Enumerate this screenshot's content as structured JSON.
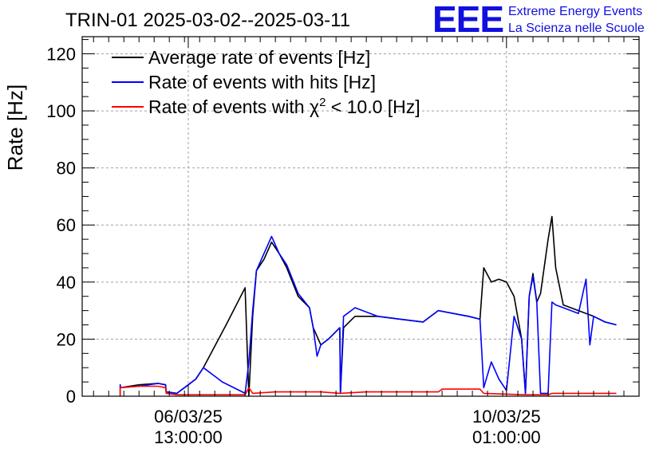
{
  "chart_data": {
    "type": "line",
    "title": "TRIN-01 2025-03-02--2025-03-11",
    "ylabel": "Rate [Hz]",
    "xlabel": "",
    "ylim": [
      0,
      126
    ],
    "yticks": [
      0,
      20,
      40,
      60,
      80,
      100,
      120
    ],
    "xlim": [
      "2025-03-05 09:00",
      "2025-03-11 12:00"
    ],
    "xticks": [
      {
        "time": "2025-03-06 13:00",
        "label_date": "06/03/25",
        "label_time": "13:00:00"
      },
      {
        "time": "2025-03-10 01:00",
        "label_date": "10/03/25",
        "label_time": "01:00:00"
      }
    ],
    "grid": true,
    "legend_position": "top-left",
    "legend": [
      {
        "label": "Average rate of events [Hz]",
        "color": "#000000"
      },
      {
        "label": "Rate of events with hits [Hz]",
        "color": "#0000ff"
      },
      {
        "label_prefix": "Rate of events with ",
        "label_symbol": "χ",
        "label_sup": "2",
        "label_suffix": " < 10.0 [Hz]",
        "color": "#ff0000"
      }
    ],
    "series": [
      {
        "name": "Average rate of events [Hz]",
        "color": "#000000",
        "points": [
          [
            "2025-03-05 19:03",
            0
          ],
          [
            "2025-03-05 19:03",
            4
          ],
          [
            "2025-03-05 19:05",
            3
          ],
          [
            "2025-03-06 00:00",
            4
          ],
          [
            "2025-03-06 05:00",
            4.5
          ],
          [
            "2025-03-06 07:00",
            4
          ],
          [
            "2025-03-06 07:10",
            1.5
          ],
          [
            "2025-03-06 10:00",
            1
          ],
          [
            "2025-03-06 13:00",
            4
          ],
          [
            "2025-03-06 15:00",
            6
          ],
          [
            "2025-03-06 17:00",
            10
          ],
          [
            "2025-03-06 23:00",
            25
          ],
          [
            "2025-03-07 04:00",
            38
          ],
          [
            "2025-03-07 05:00",
            0
          ],
          [
            "2025-03-07 05:30",
            14
          ],
          [
            "2025-03-07 06:00",
            28
          ],
          [
            "2025-03-07 07:00",
            44
          ],
          [
            "2025-03-07 09:00",
            48
          ],
          [
            "2025-03-07 11:00",
            54
          ],
          [
            "2025-03-07 13:00",
            50
          ],
          [
            "2025-03-07 15:00",
            45
          ],
          [
            "2025-03-07 18:00",
            35
          ],
          [
            "2025-03-07 21:00",
            31
          ],
          [
            "2025-03-07 22:00",
            24
          ],
          [
            "2025-03-08 00:00",
            18
          ],
          [
            "2025-03-08 02:00",
            20
          ],
          [
            "2025-03-08 05:00",
            24
          ],
          [
            "2025-03-08 05:10",
            1
          ],
          [
            "2025-03-08 06:00",
            24
          ],
          [
            "2025-03-08 09:00",
            28
          ],
          [
            "2025-03-08 15:00",
            28
          ],
          [
            "2025-03-08 21:00",
            27
          ],
          [
            "2025-03-09 03:00",
            26
          ],
          [
            "2025-03-09 07:00",
            30
          ],
          [
            "2025-03-09 15:00",
            28
          ],
          [
            "2025-03-09 18:00",
            27
          ],
          [
            "2025-03-09 19:00",
            45
          ],
          [
            "2025-03-09 21:00",
            40
          ],
          [
            "2025-03-09 23:00",
            41
          ],
          [
            "2025-03-10 01:00",
            40
          ],
          [
            "2025-03-10 03:00",
            35
          ],
          [
            "2025-03-10 05:00",
            20
          ],
          [
            "2025-03-10 06:00",
            1
          ],
          [
            "2025-03-10 07:00",
            35
          ],
          [
            "2025-03-10 08:00",
            43
          ],
          [
            "2025-03-10 09:00",
            33
          ],
          [
            "2025-03-10 10:00",
            36
          ],
          [
            "2025-03-10 12:00",
            55
          ],
          [
            "2025-03-10 13:00",
            63
          ],
          [
            "2025-03-10 14:00",
            45
          ],
          [
            "2025-03-10 16:00",
            32
          ],
          [
            "2025-03-10 20:00",
            30
          ],
          [
            "2025-03-11 00:00",
            28
          ],
          [
            "2025-03-11 03:00",
            26
          ],
          [
            "2025-03-11 06:00",
            25
          ]
        ]
      },
      {
        "name": "Rate of events with hits [Hz]",
        "color": "#0000ff",
        "points": [
          [
            "2025-03-05 19:03",
            0
          ],
          [
            "2025-03-05 19:03",
            4
          ],
          [
            "2025-03-05 19:05",
            3
          ],
          [
            "2025-03-06 00:00",
            3.5
          ],
          [
            "2025-03-06 05:00",
            4.5
          ],
          [
            "2025-03-06 07:00",
            4
          ],
          [
            "2025-03-06 07:10",
            1.5
          ],
          [
            "2025-03-06 10:00",
            1
          ],
          [
            "2025-03-06 13:00",
            4
          ],
          [
            "2025-03-06 15:00",
            6
          ],
          [
            "2025-03-06 17:00",
            10
          ],
          [
            "2025-03-06 22:00",
            5
          ],
          [
            "2025-03-07 04:00",
            1
          ],
          [
            "2025-03-07 05:00",
            12
          ],
          [
            "2025-03-07 06:00",
            30
          ],
          [
            "2025-03-07 07:00",
            44
          ],
          [
            "2025-03-07 09:00",
            50
          ],
          [
            "2025-03-07 11:00",
            56
          ],
          [
            "2025-03-07 13:00",
            50
          ],
          [
            "2025-03-07 15:00",
            46
          ],
          [
            "2025-03-07 18:00",
            36
          ],
          [
            "2025-03-07 21:00",
            31
          ],
          [
            "2025-03-07 22:00",
            24
          ],
          [
            "2025-03-07 23:00",
            14
          ],
          [
            "2025-03-08 00:00",
            18
          ],
          [
            "2025-03-08 02:00",
            20
          ],
          [
            "2025-03-08 05:00",
            24
          ],
          [
            "2025-03-08 05:10",
            1
          ],
          [
            "2025-03-08 06:00",
            28
          ],
          [
            "2025-03-08 09:00",
            31
          ],
          [
            "2025-03-08 15:00",
            28
          ],
          [
            "2025-03-08 21:00",
            27
          ],
          [
            "2025-03-09 03:00",
            26
          ],
          [
            "2025-03-09 07:00",
            30
          ],
          [
            "2025-03-09 15:00",
            28
          ],
          [
            "2025-03-09 18:00",
            27
          ],
          [
            "2025-03-09 19:00",
            3
          ],
          [
            "2025-03-09 21:00",
            12
          ],
          [
            "2025-03-09 23:00",
            6
          ],
          [
            "2025-03-10 01:00",
            2
          ],
          [
            "2025-03-10 03:00",
            28
          ],
          [
            "2025-03-10 05:00",
            20
          ],
          [
            "2025-03-10 06:00",
            1
          ],
          [
            "2025-03-10 07:00",
            35
          ],
          [
            "2025-03-10 08:00",
            42
          ],
          [
            "2025-03-10 09:00",
            33
          ],
          [
            "2025-03-10 10:00",
            1
          ],
          [
            "2025-03-10 12:00",
            1
          ],
          [
            "2025-03-10 13:00",
            33
          ],
          [
            "2025-03-10 14:00",
            32
          ],
          [
            "2025-03-10 16:00",
            31
          ],
          [
            "2025-03-10 20:00",
            29
          ],
          [
            "2025-03-10 22:00",
            41
          ],
          [
            "2025-03-10 23:00",
            18
          ],
          [
            "2025-03-11 00:00",
            28
          ],
          [
            "2025-03-11 03:00",
            26
          ],
          [
            "2025-03-11 06:00",
            25
          ]
        ]
      },
      {
        "name": "Rate of events with χ2 < 10.0 [Hz]",
        "color": "#ff0000",
        "points": [
          [
            "2025-03-05 19:03",
            0
          ],
          [
            "2025-03-05 19:03",
            3
          ],
          [
            "2025-03-05 19:05",
            3
          ],
          [
            "2025-03-06 00:00",
            3.5
          ],
          [
            "2025-03-06 05:00",
            3.5
          ],
          [
            "2025-03-06 07:00",
            3
          ],
          [
            "2025-03-06 07:10",
            1
          ],
          [
            "2025-03-06 10:00",
            0.5
          ],
          [
            "2025-03-06 13:00",
            0.5
          ],
          [
            "2025-03-06 17:00",
            0.5
          ],
          [
            "2025-03-07 04:00",
            0.5
          ],
          [
            "2025-03-07 05:00",
            3
          ],
          [
            "2025-03-07 06:00",
            1
          ],
          [
            "2025-03-07 12:00",
            1.5
          ],
          [
            "2025-03-08 00:00",
            1.5
          ],
          [
            "2025-03-08 05:00",
            1
          ],
          [
            "2025-03-08 12:00",
            1.5
          ],
          [
            "2025-03-09 07:00",
            1.5
          ],
          [
            "2025-03-09 08:00",
            2.5
          ],
          [
            "2025-03-09 18:00",
            2.5
          ],
          [
            "2025-03-09 19:00",
            1
          ],
          [
            "2025-03-10 06:00",
            0.5
          ],
          [
            "2025-03-10 12:00",
            0.5
          ],
          [
            "2025-03-10 13:00",
            1
          ],
          [
            "2025-03-11 06:00",
            1
          ]
        ]
      }
    ]
  },
  "logo": {
    "mark": "EEE",
    "line1": "Extreme Energy Events",
    "line2": "La Scienza nelle Scuole"
  }
}
